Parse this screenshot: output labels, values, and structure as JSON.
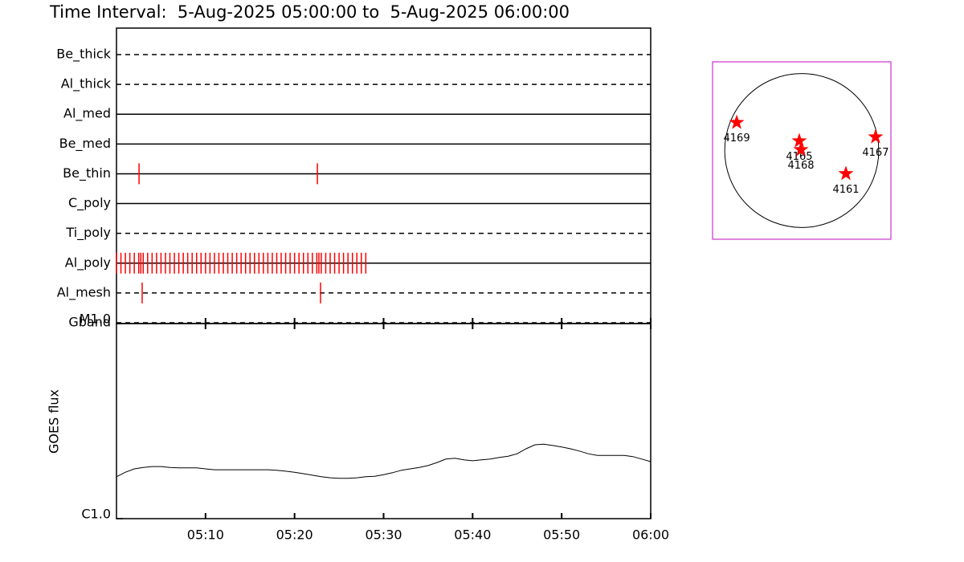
{
  "chart_data": [
    {
      "type": "timeline",
      "title": "Time Interval:  5-Aug-2025 05:00:00 to  5-Aug-2025 06:00:00",
      "xlim": [
        "05:00:00",
        "06:00:00"
      ],
      "rows": [
        {
          "name": "Be_thick",
          "dashed": true,
          "exposures": []
        },
        {
          "name": "Al_thick",
          "dashed": true,
          "exposures": []
        },
        {
          "name": "Al_med",
          "dashed": false,
          "exposures": []
        },
        {
          "name": "Be_med",
          "dashed": false,
          "exposures": []
        },
        {
          "name": "Be_thin",
          "dashed": false,
          "exposures": [
            "05:02:32",
            "05:22:34"
          ]
        },
        {
          "name": "C_poly",
          "dashed": false,
          "exposures": []
        },
        {
          "name": "Ti_poly",
          "dashed": true,
          "exposures": []
        },
        {
          "name": "Al_poly",
          "dashed": false,
          "exposures": [
            "05:00:00",
            "05:00:30",
            "05:01:00",
            "05:01:30",
            "05:02:00",
            "05:02:30",
            "05:02:44",
            "05:03:00",
            "05:03:30",
            "05:04:00",
            "05:04:30",
            "05:05:00",
            "05:05:30",
            "05:06:00",
            "05:06:30",
            "05:07:00",
            "05:07:30",
            "05:08:00",
            "05:08:30",
            "05:09:00",
            "05:09:30",
            "05:10:00",
            "05:10:30",
            "05:11:00",
            "05:11:30",
            "05:12:00",
            "05:12:30",
            "05:13:00",
            "05:13:30",
            "05:14:00",
            "05:14:30",
            "05:15:00",
            "05:15:30",
            "05:16:00",
            "05:16:30",
            "05:17:00",
            "05:17:30",
            "05:18:00",
            "05:18:30",
            "05:19:00",
            "05:19:30",
            "05:20:00",
            "05:20:30",
            "05:21:00",
            "05:21:30",
            "05:22:00",
            "05:22:30",
            "05:22:44",
            "05:23:00",
            "05:23:30",
            "05:24:00",
            "05:24:30",
            "05:25:00",
            "05:25:30",
            "05:26:00",
            "05:26:30",
            "05:27:00",
            "05:27:30",
            "05:28:00"
          ]
        },
        {
          "name": "Al_mesh",
          "dashed": true,
          "exposures": [
            "05:02:53",
            "05:22:55"
          ]
        },
        {
          "name": "Gband",
          "dashed": true,
          "exposures": []
        }
      ],
      "color": "#ff0000"
    },
    {
      "type": "line",
      "y_label": "GOES flux",
      "xlim": [
        "05:00",
        "06:00"
      ],
      "xticks": [
        "05:10",
        "05:20",
        "05:30",
        "05:40",
        "05:50",
        "06:00"
      ],
      "ylim": [
        1e-06,
        1e-05
      ],
      "ylog": true,
      "yticks": [
        {
          "value": 1e-06,
          "label": "C1.0"
        },
        {
          "value": 1e-05,
          "label": "M1.0"
        }
      ],
      "x": [
        "05:00",
        "05:01",
        "05:02",
        "05:03",
        "05:04",
        "05:05",
        "05:06",
        "05:07",
        "05:08",
        "05:09",
        "05:10",
        "05:11",
        "05:12",
        "05:13",
        "05:14",
        "05:15",
        "05:16",
        "05:17",
        "05:18",
        "05:19",
        "05:20",
        "05:21",
        "05:22",
        "05:23",
        "05:24",
        "05:25",
        "05:26",
        "05:27",
        "05:28",
        "05:29",
        "05:30",
        "05:31",
        "05:32",
        "05:33",
        "05:34",
        "05:35",
        "05:36",
        "05:37",
        "05:38",
        "05:39",
        "05:40",
        "05:41",
        "05:42",
        "05:43",
        "05:44",
        "05:45",
        "05:46",
        "05:47",
        "05:48",
        "05:49",
        "05:50",
        "05:51",
        "05:52",
        "05:53",
        "05:54",
        "05:55",
        "05:56",
        "05:57",
        "05:58",
        "05:59",
        "06:00"
      ],
      "values": [
        1.64e-06,
        1.73e-06,
        1.8e-06,
        1.83e-06,
        1.85e-06,
        1.85e-06,
        1.83e-06,
        1.82e-06,
        1.82e-06,
        1.82e-06,
        1.8e-06,
        1.78e-06,
        1.78e-06,
        1.78e-06,
        1.78e-06,
        1.78e-06,
        1.78e-06,
        1.78e-06,
        1.77e-06,
        1.75e-06,
        1.73e-06,
        1.7e-06,
        1.67e-06,
        1.64e-06,
        1.62e-06,
        1.61e-06,
        1.61e-06,
        1.62e-06,
        1.64e-06,
        1.65e-06,
        1.68e-06,
        1.72e-06,
        1.77e-06,
        1.8e-06,
        1.83e-06,
        1.87e-06,
        1.94e-06,
        2.02e-06,
        2.04e-06,
        2e-06,
        1.98e-06,
        2e-06,
        2.02e-06,
        2.06e-06,
        2.09e-06,
        2.15e-06,
        2.28e-06,
        2.39e-06,
        2.41e-06,
        2.37e-06,
        2.33e-06,
        2.28e-06,
        2.22e-06,
        2.15e-06,
        2.11e-06,
        2.11e-06,
        2.11e-06,
        2.11e-06,
        2.08e-06,
        2.02e-06,
        1.96e-06
      ],
      "color": "#000000"
    },
    {
      "type": "map",
      "xlim": [
        -1100,
        1100
      ],
      "ylim": [
        -1100,
        1100
      ],
      "radius": 950,
      "frame_color": "#cc33cc",
      "color": "#ff0000",
      "points": [
        {
          "name": "4169",
          "x": -802,
          "y": 347
        },
        {
          "name": "4165",
          "x": -30,
          "y": 119
        },
        {
          "name": "4168",
          "x": -10,
          "y": 10
        },
        {
          "name": "4167",
          "x": 911,
          "y": 168
        },
        {
          "name": "4161",
          "x": 545,
          "y": -287
        }
      ]
    }
  ]
}
